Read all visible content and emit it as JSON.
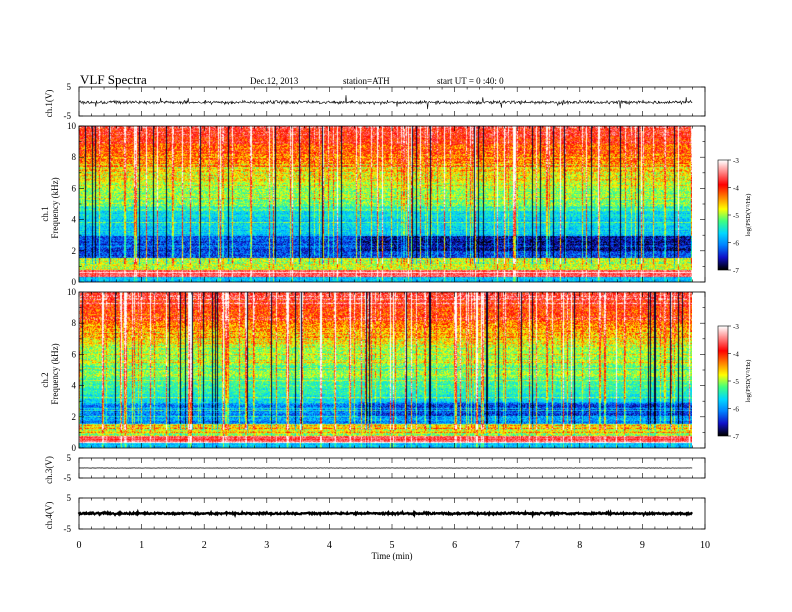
{
  "header": {
    "title": "VLF Spectra",
    "date": "Dec.12, 2013",
    "station": "station=ATH",
    "start": "start UT = 0 :40: 0"
  },
  "chart_data": [
    {
      "type": "line",
      "panel": "ch1-waveform",
      "ylabel": "ch.1(V)",
      "ylim": [
        -5,
        5
      ],
      "yticks": [
        "5",
        "-5"
      ],
      "xlim": [
        0,
        10
      ],
      "baseline": -0.3
    },
    {
      "type": "heatmap",
      "panel": "ch1-spectrogram",
      "ylabel_top": "ch.1",
      "ylabel": "Frequency (kHz)",
      "ylim": [
        0,
        10
      ],
      "yticks": [
        "0",
        "2",
        "4",
        "6",
        "8",
        "10"
      ],
      "xlim": [
        0,
        10
      ],
      "data_end_min": 9.8,
      "colorbar": {
        "label": "log(PSD(V²/Hz)",
        "range": [
          -7,
          -3
        ],
        "ticks": [
          "-3",
          "-4",
          "-5",
          "-6",
          "-7"
        ],
        "colors": [
          "#000000",
          "#1010c8",
          "#0080ff",
          "#00d8ff",
          "#40ff80",
          "#ffff00",
          "#ff8000",
          "#ff0000",
          "#ff8080",
          "#ffffff"
        ]
      }
    },
    {
      "type": "heatmap",
      "panel": "ch2-spectrogram",
      "ylabel_top": "ch.2",
      "ylabel": "Frequency (kHz)",
      "ylim": [
        0,
        10
      ],
      "yticks": [
        "0",
        "2",
        "4",
        "6",
        "8",
        "10"
      ],
      "xlim": [
        0,
        10
      ],
      "data_end_min": 9.8,
      "colorbar": {
        "label": "log(PSD(V²/Hz)",
        "range": [
          -7,
          -3
        ],
        "ticks": [
          "-3",
          "-4",
          "-5",
          "-6",
          "-7"
        ],
        "colors": [
          "#000000",
          "#1010c8",
          "#0080ff",
          "#00d8ff",
          "#40ff80",
          "#ffff00",
          "#ff8000",
          "#ff0000",
          "#ff8080",
          "#ffffff"
        ]
      }
    },
    {
      "type": "line",
      "panel": "ch3-waveform",
      "ylabel": "ch.3(V)",
      "ylim": [
        -5,
        5
      ],
      "yticks": [
        "5",
        "-5"
      ],
      "xlim": [
        0,
        10
      ],
      "baseline": 0
    },
    {
      "type": "line",
      "panel": "ch4-waveform",
      "ylabel": "ch.4(V)",
      "ylim": [
        -5,
        5
      ],
      "yticks": [
        "5",
        "-5"
      ],
      "xlim": [
        0,
        10
      ],
      "baseline": 0,
      "xlabel": "Time (min)",
      "xticks": [
        "0",
        "1",
        "2",
        "3",
        "4",
        "5",
        "6",
        "7",
        "8",
        "9",
        "10"
      ]
    }
  ]
}
